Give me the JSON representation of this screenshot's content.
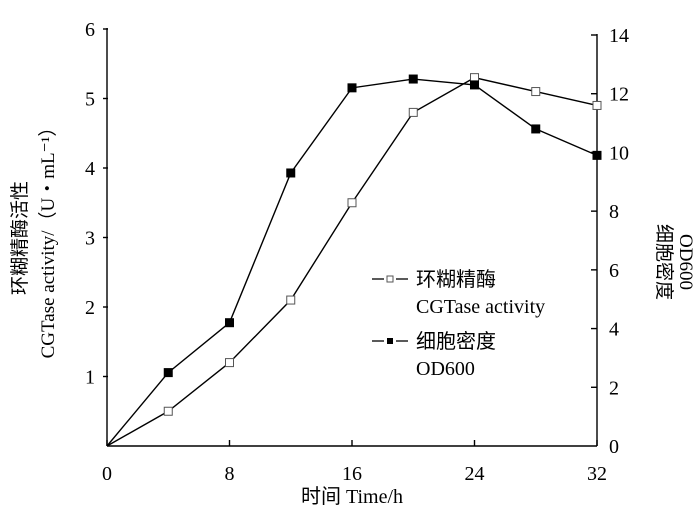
{
  "chart_data": {
    "type": "line",
    "title": "",
    "x": [
      0,
      4,
      8,
      12,
      16,
      20,
      24,
      28,
      32
    ],
    "xlabel": "时间  Time/h",
    "xlim": [
      0,
      32
    ],
    "xticks": [
      0,
      8,
      16,
      24,
      32
    ],
    "ylabel_left_line1": "环糊精酶活性",
    "ylabel_left_line2": "CGTase activity/（U・mL⁻¹）",
    "ylim_left": [
      0,
      6
    ],
    "yticks_left": [
      1,
      2,
      3,
      4,
      5,
      6
    ],
    "ylabel_right_line1": "细胞密度",
    "ylabel_right_line2": "OD600",
    "ylim_right": [
      0,
      14
    ],
    "yticks_right": [
      0,
      2,
      4,
      6,
      8,
      10,
      12,
      14
    ],
    "grid": false,
    "legend_position": "center-right",
    "series": [
      {
        "name_cn": "环糊精酶",
        "name_en": "CGTase activity",
        "axis": "left",
        "marker": "open-square",
        "values": [
          0,
          0.5,
          1.2,
          2.1,
          3.5,
          4.8,
          5.3,
          5.1,
          4.9
        ]
      },
      {
        "name_cn": "细胞密度",
        "name_en": "OD600",
        "axis": "right",
        "marker": "filled-square",
        "values": [
          0,
          2.5,
          4.2,
          9.3,
          12.2,
          12.5,
          12.3,
          10.8,
          9.9
        ]
      }
    ]
  }
}
